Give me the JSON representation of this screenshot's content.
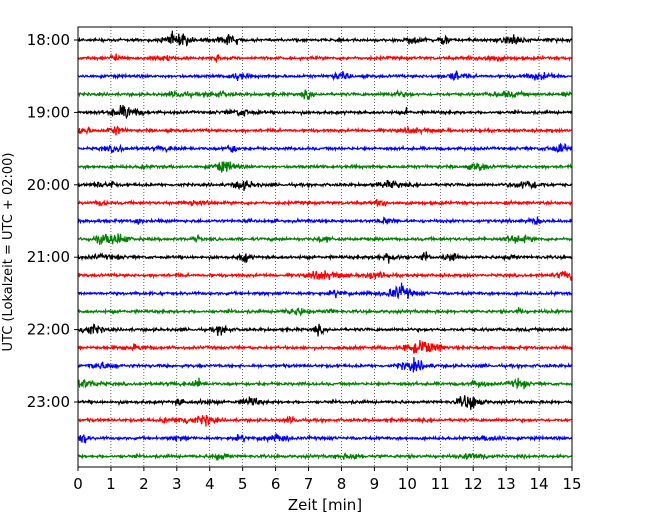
{
  "chart_data": {
    "type": "line",
    "title": "",
    "xlabel": "Zeit  [min]",
    "ylabel": "UTC (Lokalzeit = UTC + 02:00)",
    "xlim": [
      0,
      15
    ],
    "x_ticks": [
      0,
      1,
      2,
      3,
      4,
      5,
      6,
      7,
      8,
      9,
      10,
      11,
      12,
      13,
      14,
      15
    ],
    "y_ticks": [
      "18:00",
      "19:00",
      "20:00",
      "21:00",
      "22:00",
      "23:00"
    ],
    "grid": "vertical dotted lines at each minute",
    "trace_interval_min": 15,
    "trace_start": "18:00",
    "trace_count": 24,
    "trace_colors": [
      "#000000",
      "#ff0000",
      "#0000ff",
      "#008000"
    ],
    "series_description": "seismogram traces, one per 15-minute window, 18:00 to 23:45 UTC"
  }
}
